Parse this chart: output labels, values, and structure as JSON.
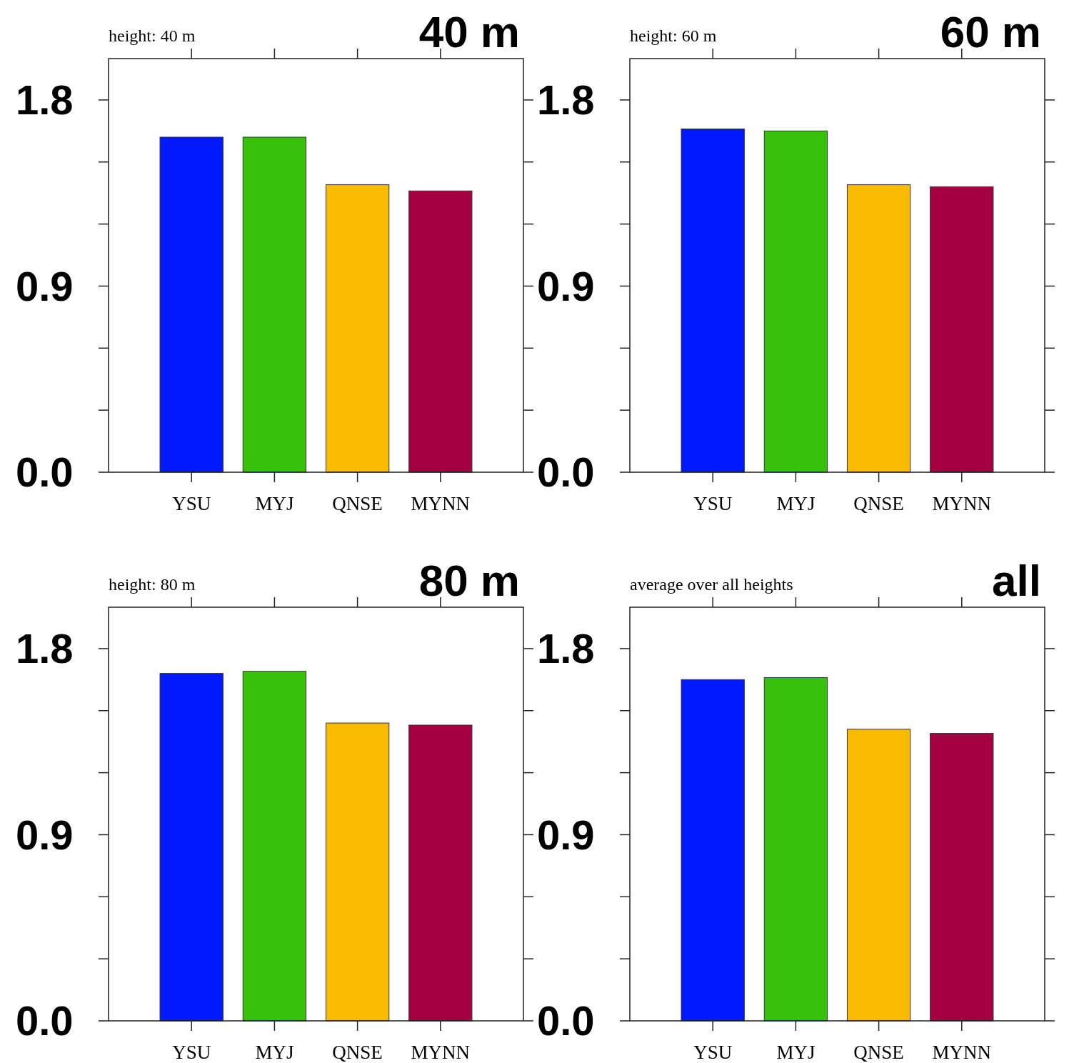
{
  "chart_data": [
    {
      "type": "bar",
      "title": "40 m",
      "subtitle": "height: 40 m",
      "categories": [
        "YSU",
        "MYJ",
        "QNSE",
        "MYNN"
      ],
      "values": [
        1.62,
        1.62,
        1.39,
        1.36
      ],
      "colors": [
        "#0019ff",
        "#38c10a",
        "#fbbc00",
        "#a50041"
      ],
      "ylim": [
        0,
        2.0
      ],
      "yticks": [
        {
          "value": 0,
          "label": "0.0"
        },
        {
          "value": 0.3,
          "label": null
        },
        {
          "value": 0.6,
          "label": null
        },
        {
          "value": 0.9,
          "label": "0.9"
        },
        {
          "value": 1.2,
          "label": null
        },
        {
          "value": 1.5,
          "label": null
        },
        {
          "value": 1.8,
          "label": "1.8"
        }
      ]
    },
    {
      "type": "bar",
      "title": "60 m",
      "subtitle": "height: 60 m",
      "categories": [
        "YSU",
        "MYJ",
        "QNSE",
        "MYNN"
      ],
      "values": [
        1.66,
        1.65,
        1.39,
        1.38
      ],
      "colors": [
        "#0019ff",
        "#38c10a",
        "#fbbc00",
        "#a50041"
      ],
      "ylim": [
        0,
        2.0
      ],
      "yticks": [
        {
          "value": 0,
          "label": "0.0"
        },
        {
          "value": 0.3,
          "label": null
        },
        {
          "value": 0.6,
          "label": null
        },
        {
          "value": 0.9,
          "label": "0.9"
        },
        {
          "value": 1.2,
          "label": null
        },
        {
          "value": 1.5,
          "label": null
        },
        {
          "value": 1.8,
          "label": "1.8"
        }
      ]
    },
    {
      "type": "bar",
      "title": "80 m",
      "subtitle": "height: 80 m",
      "categories": [
        "YSU",
        "MYJ",
        "QNSE",
        "MYNN"
      ],
      "values": [
        1.68,
        1.69,
        1.44,
        1.43
      ],
      "colors": [
        "#0019ff",
        "#38c10a",
        "#fbbc00",
        "#a50041"
      ],
      "ylim": [
        0,
        2.0
      ],
      "yticks": [
        {
          "value": 0,
          "label": "0.0"
        },
        {
          "value": 0.3,
          "label": null
        },
        {
          "value": 0.6,
          "label": null
        },
        {
          "value": 0.9,
          "label": "0.9"
        },
        {
          "value": 1.2,
          "label": null
        },
        {
          "value": 1.5,
          "label": null
        },
        {
          "value": 1.8,
          "label": "1.8"
        }
      ]
    },
    {
      "type": "bar",
      "title": "all",
      "subtitle": "average over all heights",
      "categories": [
        "YSU",
        "MYJ",
        "QNSE",
        "MYNN"
      ],
      "values": [
        1.65,
        1.66,
        1.41,
        1.39
      ],
      "colors": [
        "#0019ff",
        "#38c10a",
        "#fbbc00",
        "#a50041"
      ],
      "ylim": [
        0,
        2.0
      ],
      "yticks": [
        {
          "value": 0,
          "label": "0.0"
        },
        {
          "value": 0.3,
          "label": null
        },
        {
          "value": 0.6,
          "label": null
        },
        {
          "value": 0.9,
          "label": "0.9"
        },
        {
          "value": 1.2,
          "label": null
        },
        {
          "value": 1.5,
          "label": null
        },
        {
          "value": 1.8,
          "label": "1.8"
        }
      ]
    }
  ]
}
